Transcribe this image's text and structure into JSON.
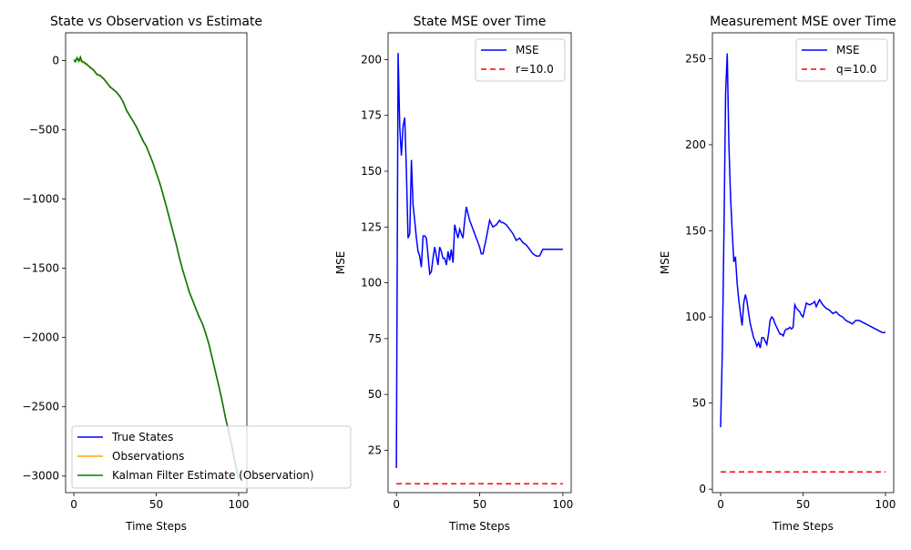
{
  "chart_data": [
    {
      "type": "line",
      "title": "State vs Observation vs Estimate",
      "xlabel": "Time Steps",
      "ylabel": "",
      "xlim": [
        -5,
        105
      ],
      "ylim": [
        -3120,
        200
      ],
      "xticks": [
        0,
        50,
        100
      ],
      "yticks": [
        0,
        -500,
        -1000,
        -1500,
        -2000,
        -2500,
        -3000
      ],
      "legend_position": "lower-left",
      "series": [
        {
          "name": "True States",
          "color": "#0000ff",
          "x": [
            0,
            2,
            4,
            6,
            8,
            10,
            12,
            14,
            16,
            18,
            20,
            22,
            24,
            26,
            28,
            30,
            32,
            34,
            36,
            38,
            40,
            42,
            44,
            46,
            48,
            50,
            52,
            54,
            56,
            58,
            60,
            62,
            64,
            66,
            68,
            70,
            72,
            74,
            76,
            78,
            80,
            82,
            84,
            86,
            88,
            90,
            92,
            94,
            96,
            98,
            100
          ],
          "y": [
            0,
            15,
            0,
            -15,
            -30,
            -50,
            -70,
            -100,
            -110,
            -130,
            -160,
            -190,
            -210,
            -230,
            -260,
            -300,
            -360,
            -400,
            -440,
            -480,
            -530,
            -580,
            -620,
            -680,
            -740,
            -810,
            -880,
            -960,
            -1050,
            -1140,
            -1230,
            -1320,
            -1420,
            -1510,
            -1590,
            -1670,
            -1730,
            -1790,
            -1850,
            -1900,
            -1970,
            -2050,
            -2150,
            -2250,
            -2350,
            -2460,
            -2580,
            -2680,
            -2790,
            -2910,
            -3020
          ]
        },
        {
          "name": "Observations",
          "color": "#ffa500",
          "x": [
            0,
            2,
            4,
            6,
            8,
            10,
            12,
            14,
            16,
            18,
            20,
            22,
            24,
            26,
            28,
            30,
            32,
            34,
            36,
            38,
            40,
            42,
            44,
            46,
            48,
            50,
            52,
            54,
            56,
            58,
            60,
            62,
            64,
            66,
            68,
            70,
            72,
            74,
            76,
            78,
            80,
            82,
            84,
            86,
            88,
            90,
            92,
            94,
            96,
            98,
            100
          ],
          "y": [
            5,
            10,
            5,
            -20,
            -25,
            -55,
            -65,
            -105,
            -105,
            -135,
            -155,
            -195,
            -205,
            -235,
            -255,
            -305,
            -355,
            -405,
            -435,
            -485,
            -525,
            -585,
            -615,
            -685,
            -735,
            -815,
            -875,
            -965,
            -1045,
            -1145,
            -1225,
            -1325,
            -1415,
            -1515,
            -1585,
            -1675,
            -1725,
            -1795,
            -1845,
            -1905,
            -1965,
            -2055,
            -2145,
            -2255,
            -2345,
            -2465,
            -2575,
            -2685,
            -2785,
            -2915,
            -3015
          ]
        },
        {
          "name": "Kalman Filter Estimate (Observation)",
          "color": "#008000",
          "x": [
            0,
            1,
            2,
            3,
            4,
            5,
            6,
            8,
            10,
            12,
            14,
            16,
            18,
            20,
            22,
            24,
            26,
            28,
            30,
            32,
            34,
            36,
            38,
            40,
            42,
            44,
            46,
            48,
            50,
            52,
            54,
            56,
            58,
            60,
            62,
            64,
            66,
            68,
            70,
            72,
            74,
            76,
            78,
            80,
            82,
            84,
            86,
            88,
            90,
            92,
            94,
            96,
            98,
            100
          ],
          "y": [
            0,
            -10,
            20,
            -5,
            25,
            -10,
            -10,
            -30,
            -50,
            -70,
            -100,
            -110,
            -130,
            -160,
            -190,
            -210,
            -230,
            -260,
            -300,
            -360,
            -400,
            -440,
            -480,
            -530,
            -580,
            -620,
            -680,
            -740,
            -810,
            -880,
            -960,
            -1050,
            -1140,
            -1230,
            -1320,
            -1420,
            -1510,
            -1590,
            -1670,
            -1730,
            -1790,
            -1850,
            -1900,
            -1970,
            -2050,
            -2150,
            -2250,
            -2350,
            -2460,
            -2580,
            -2680,
            -2790,
            -2910,
            -3020
          ]
        }
      ]
    },
    {
      "type": "line",
      "title": "State MSE over Time",
      "xlabel": "Time Steps",
      "ylabel": "MSE",
      "xlim": [
        -5,
        105
      ],
      "ylim": [
        6,
        212
      ],
      "xticks": [
        0,
        50,
        100
      ],
      "yticks": [
        25,
        50,
        75,
        100,
        125,
        150,
        175,
        200
      ],
      "legend_position": "upper-right",
      "series": [
        {
          "name": "MSE",
          "color": "#0000ff",
          "dash": "",
          "x": [
            0,
            1,
            2,
            3,
            4,
            5,
            6,
            7,
            8,
            9,
            10,
            11,
            12,
            13,
            14,
            15,
            16,
            17,
            18,
            19,
            20,
            21,
            22,
            23,
            24,
            25,
            26,
            27,
            28,
            29,
            30,
            31,
            32,
            33,
            34,
            35,
            36,
            37,
            38,
            39,
            40,
            41,
            42,
            43,
            44,
            45,
            46,
            47,
            48,
            49,
            50,
            51,
            52,
            54,
            56,
            58,
            60,
            62,
            63,
            64,
            66,
            68,
            70,
            72,
            74,
            76,
            78,
            80,
            82,
            84,
            86,
            88,
            90,
            92,
            94,
            96,
            98,
            100
          ],
          "y": [
            17,
            203,
            170,
            157,
            170,
            174,
            150,
            120,
            122,
            155,
            135,
            128,
            120,
            114,
            112,
            107,
            121,
            121,
            120,
            112,
            104,
            105,
            111,
            116,
            112,
            108,
            116,
            114,
            111,
            111,
            108,
            114,
            110,
            115,
            109,
            126,
            123,
            120,
            124,
            122,
            120,
            128,
            134,
            131,
            128,
            126,
            124,
            122,
            120,
            118,
            116,
            113,
            113,
            120,
            128,
            125,
            126,
            128,
            127,
            127,
            126,
            124,
            122,
            119,
            120,
            118,
            117,
            115,
            113,
            112,
            112,
            115,
            115,
            115,
            115,
            115,
            115,
            115
          ]
        },
        {
          "name": "r=10.0",
          "color": "#ff0000",
          "dash": "6,4",
          "x": [
            0,
            100
          ],
          "y": [
            10,
            10
          ]
        }
      ]
    },
    {
      "type": "line",
      "title": "Measurement MSE over Time",
      "xlabel": "Time Steps",
      "ylabel": "MSE",
      "xlim": [
        -5,
        105
      ],
      "ylim": [
        -2,
        265
      ],
      "xticks": [
        0,
        50,
        100
      ],
      "yticks": [
        0,
        50,
        100,
        150,
        200,
        250
      ],
      "legend_position": "upper-right",
      "series": [
        {
          "name": "MSE",
          "color": "#0000ff",
          "dash": "",
          "x": [
            0,
            1,
            2,
            3,
            4,
            5,
            6,
            7,
            8,
            9,
            10,
            11,
            12,
            13,
            14,
            15,
            16,
            17,
            18,
            19,
            20,
            21,
            22,
            23,
            24,
            25,
            26,
            27,
            28,
            29,
            30,
            31,
            32,
            33,
            34,
            35,
            36,
            37,
            38,
            39,
            40,
            41,
            42,
            43,
            44,
            45,
            46,
            47,
            48,
            49,
            50,
            52,
            54,
            56,
            57,
            58,
            60,
            62,
            64,
            66,
            68,
            70,
            72,
            74,
            76,
            78,
            80,
            82,
            84,
            86,
            88,
            90,
            92,
            94,
            96,
            98,
            100
          ],
          "y": [
            36,
            80,
            150,
            230,
            253,
            200,
            170,
            150,
            132,
            135,
            120,
            110,
            102,
            95,
            108,
            113,
            109,
            102,
            96,
            92,
            88,
            86,
            83,
            85,
            82,
            88,
            88,
            86,
            84,
            90,
            98,
            100,
            99,
            96,
            94,
            92,
            90,
            90,
            89,
            92,
            93,
            93,
            94,
            93,
            94,
            107,
            105,
            104,
            103,
            101,
            100,
            108,
            107,
            108,
            109,
            106,
            110,
            107,
            105,
            104,
            102,
            103,
            101,
            100,
            98,
            97,
            96,
            98,
            98,
            97,
            96,
            95,
            94,
            93,
            92,
            91,
            91
          ]
        },
        {
          "name": "q=10.0",
          "color": "#ff0000",
          "dash": "6,4",
          "x": [
            0,
            100
          ],
          "y": [
            10,
            10
          ]
        }
      ]
    }
  ]
}
